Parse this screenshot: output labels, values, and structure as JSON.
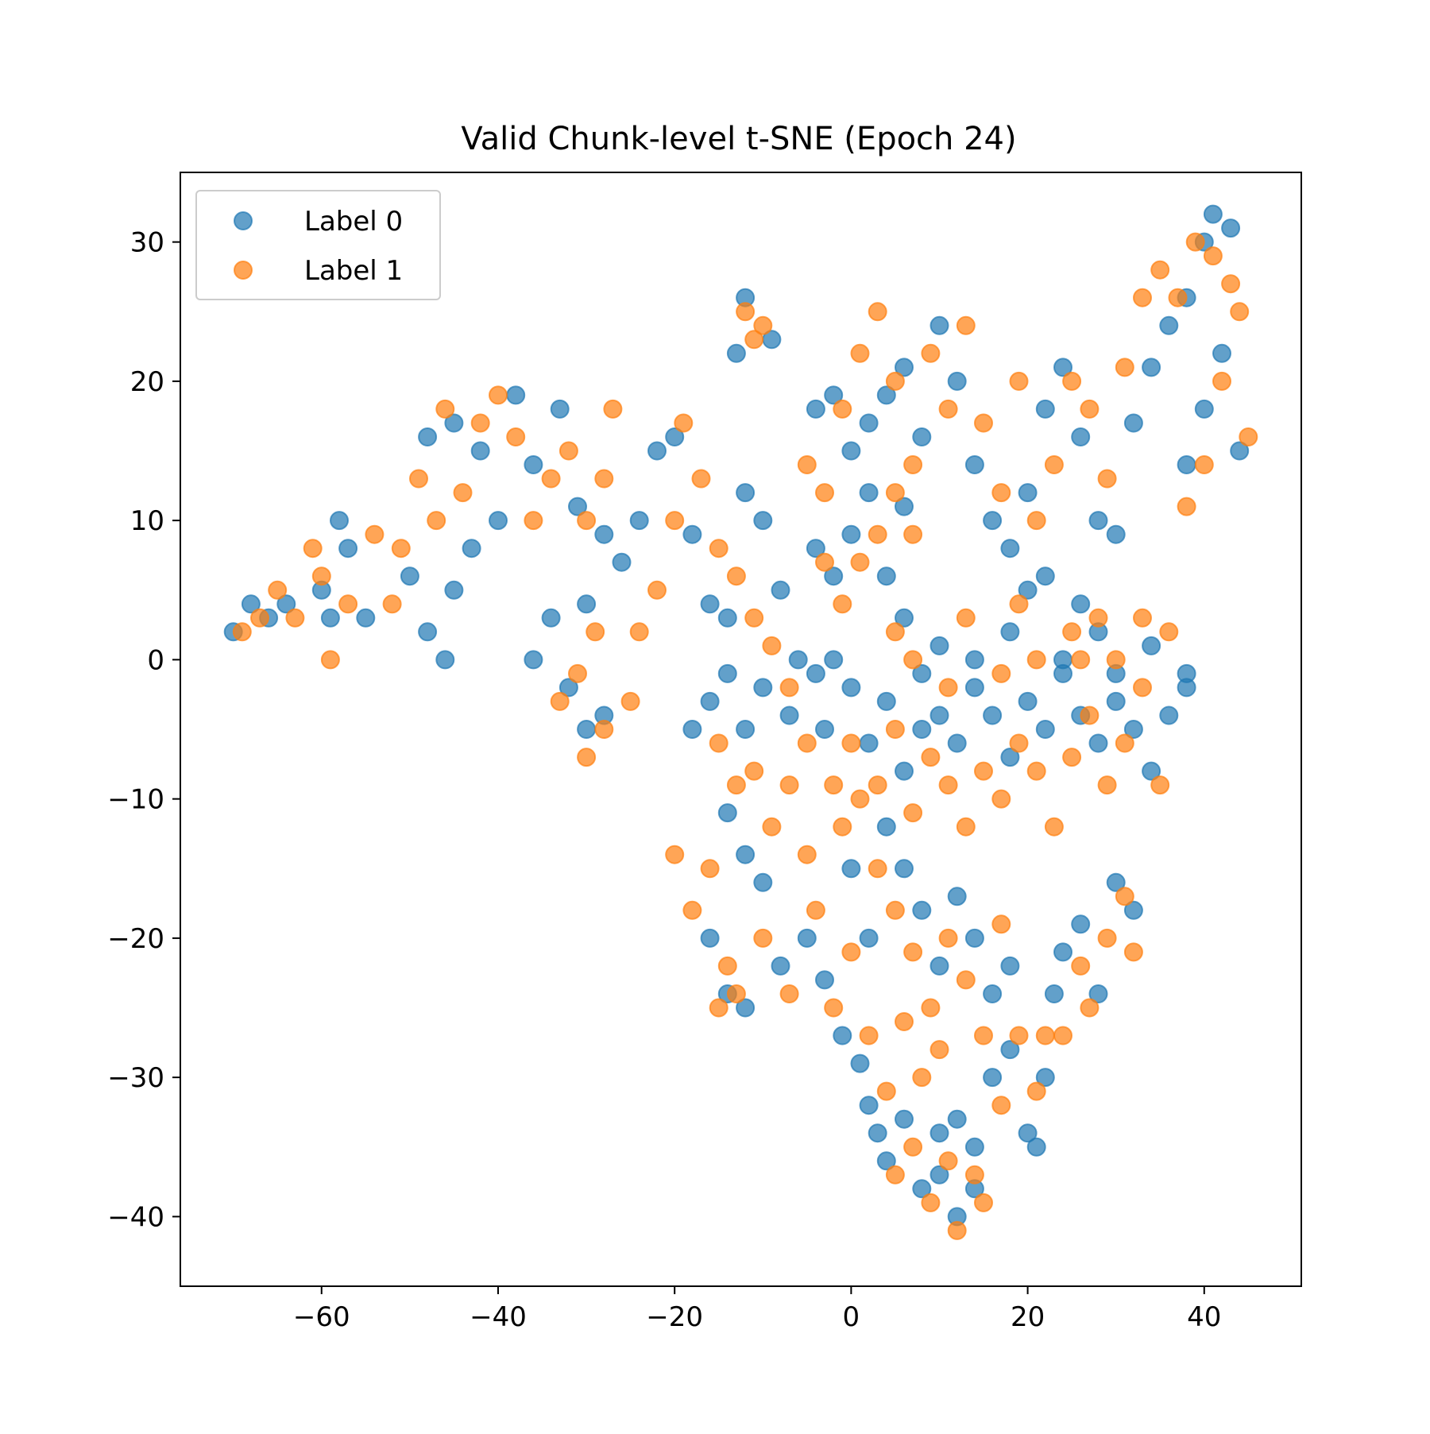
{
  "chart_data": {
    "type": "scatter",
    "title": "Valid Chunk-level t-SNE (Epoch 24)",
    "xlabel": "",
    "ylabel": "",
    "xlim": [
      -76,
      51
    ],
    "ylim": [
      -45,
      35
    ],
    "xticks": [
      -60,
      -40,
      -20,
      0,
      20,
      40
    ],
    "xtick_labels": [
      "−60",
      "−40",
      "−20",
      "0",
      "20",
      "40"
    ],
    "yticks": [
      30,
      20,
      10,
      0,
      -10,
      -20,
      -30,
      -40
    ],
    "ytick_labels": [
      "30",
      "20",
      "10",
      "0",
      "−10",
      "−20",
      "−30",
      "−40"
    ],
    "grid": false,
    "legend_position": "upper-left",
    "series": [
      {
        "name": "Label 0",
        "color": "#1f77b4",
        "alpha": 0.7,
        "points": [
          [
            -70,
            2
          ],
          [
            -68,
            4
          ],
          [
            -66,
            3
          ],
          [
            -64,
            4
          ],
          [
            -60,
            5
          ],
          [
            -58,
            10
          ],
          [
            -57,
            8
          ],
          [
            -59,
            3
          ],
          [
            -55,
            3
          ],
          [
            -50,
            6
          ],
          [
            -48,
            2
          ],
          [
            -46,
            0
          ],
          [
            -45,
            5
          ],
          [
            -43,
            8
          ],
          [
            -48,
            16
          ],
          [
            -45,
            17
          ],
          [
            -42,
            15
          ],
          [
            -40,
            10
          ],
          [
            -38,
            19
          ],
          [
            -36,
            14
          ],
          [
            -33,
            18
          ],
          [
            -31,
            11
          ],
          [
            -28,
            9
          ],
          [
            -30,
            4
          ],
          [
            -34,
            3
          ],
          [
            -36,
            0
          ],
          [
            -32,
            -2
          ],
          [
            -30,
            -5
          ],
          [
            -28,
            -4
          ],
          [
            -26,
            7
          ],
          [
            -24,
            10
          ],
          [
            -22,
            15
          ],
          [
            -20,
            16
          ],
          [
            -18,
            9
          ],
          [
            -16,
            4
          ],
          [
            -14,
            3
          ],
          [
            -12,
            12
          ],
          [
            -10,
            10
          ],
          [
            -8,
            5
          ],
          [
            -6,
            0
          ],
          [
            -4,
            -1
          ],
          [
            -2,
            0
          ],
          [
            -12,
            26
          ],
          [
            -13,
            22
          ],
          [
            -9,
            23
          ],
          [
            -4,
            18
          ],
          [
            -2,
            19
          ],
          [
            0,
            15
          ],
          [
            2,
            17
          ],
          [
            4,
            19
          ],
          [
            6,
            21
          ],
          [
            8,
            16
          ],
          [
            10,
            24
          ],
          [
            12,
            20
          ],
          [
            14,
            14
          ],
          [
            16,
            10
          ],
          [
            18,
            8
          ],
          [
            20,
            12
          ],
          [
            22,
            18
          ],
          [
            24,
            21
          ],
          [
            26,
            16
          ],
          [
            28,
            10
          ],
          [
            30,
            9
          ],
          [
            32,
            17
          ],
          [
            34,
            21
          ],
          [
            36,
            24
          ],
          [
            38,
            26
          ],
          [
            40,
            30
          ],
          [
            41,
            32
          ],
          [
            43,
            31
          ],
          [
            42,
            22
          ],
          [
            40,
            18
          ],
          [
            38,
            14
          ],
          [
            44,
            15
          ],
          [
            -14,
            -1
          ],
          [
            -16,
            -3
          ],
          [
            -18,
            -5
          ],
          [
            -12,
            -5
          ],
          [
            -10,
            -2
          ],
          [
            -7,
            -4
          ],
          [
            -3,
            -5
          ],
          [
            0,
            -2
          ],
          [
            2,
            -6
          ],
          [
            4,
            -3
          ],
          [
            6,
            -8
          ],
          [
            8,
            -5
          ],
          [
            10,
            -4
          ],
          [
            12,
            -6
          ],
          [
            14,
            -2
          ],
          [
            16,
            -4
          ],
          [
            18,
            -7
          ],
          [
            20,
            -3
          ],
          [
            22,
            -5
          ],
          [
            24,
            -1
          ],
          [
            26,
            -4
          ],
          [
            28,
            -6
          ],
          [
            30,
            -3
          ],
          [
            32,
            -5
          ],
          [
            34,
            -8
          ],
          [
            36,
            -4
          ],
          [
            38,
            -2
          ],
          [
            -14,
            -11
          ],
          [
            -12,
            -14
          ],
          [
            -10,
            -16
          ],
          [
            -16,
            -20
          ],
          [
            -14,
            -24
          ],
          [
            -12,
            -25
          ],
          [
            -8,
            -22
          ],
          [
            -5,
            -20
          ],
          [
            -3,
            -23
          ],
          [
            -1,
            -27
          ],
          [
            1,
            -29
          ],
          [
            2,
            -32
          ],
          [
            3,
            -34
          ],
          [
            4,
            -36
          ],
          [
            6,
            -33
          ],
          [
            8,
            -38
          ],
          [
            10,
            -37
          ],
          [
            12,
            -33
          ],
          [
            14,
            -35
          ],
          [
            16,
            -30
          ],
          [
            18,
            -28
          ],
          [
            20,
            -34
          ],
          [
            21,
            -35
          ],
          [
            22,
            -30
          ],
          [
            23,
            -24
          ],
          [
            24,
            -21
          ],
          [
            26,
            -19
          ],
          [
            28,
            -24
          ],
          [
            30,
            -16
          ],
          [
            32,
            -18
          ],
          [
            4,
            -12
          ],
          [
            6,
            -15
          ],
          [
            8,
            -18
          ],
          [
            10,
            -22
          ],
          [
            12,
            -17
          ],
          [
            14,
            -20
          ],
          [
            16,
            -24
          ],
          [
            18,
            -22
          ],
          [
            2,
            -20
          ],
          [
            0,
            -15
          ],
          [
            12,
            -40
          ],
          [
            14,
            -38
          ],
          [
            10,
            -34
          ],
          [
            26,
            4
          ],
          [
            28,
            2
          ],
          [
            30,
            -1
          ],
          [
            34,
            1
          ],
          [
            38,
            -1
          ],
          [
            6,
            3
          ],
          [
            8,
            -1
          ],
          [
            10,
            1
          ],
          [
            14,
            0
          ],
          [
            18,
            2
          ],
          [
            20,
            5
          ],
          [
            22,
            6
          ],
          [
            24,
            0
          ],
          [
            -4,
            8
          ],
          [
            -2,
            6
          ],
          [
            0,
            9
          ],
          [
            2,
            12
          ],
          [
            4,
            6
          ],
          [
            6,
            11
          ]
        ]
      },
      {
        "name": "Label 1",
        "color": "#ff7f0e",
        "alpha": 0.7,
        "points": [
          [
            -69,
            2
          ],
          [
            -67,
            3
          ],
          [
            -65,
            5
          ],
          [
            -63,
            3
          ],
          [
            -61,
            8
          ],
          [
            -60,
            6
          ],
          [
            -59,
            0
          ],
          [
            -57,
            4
          ],
          [
            -54,
            9
          ],
          [
            -52,
            4
          ],
          [
            -51,
            8
          ],
          [
            -49,
            13
          ],
          [
            -47,
            10
          ],
          [
            -46,
            18
          ],
          [
            -44,
            12
          ],
          [
            -42,
            17
          ],
          [
            -40,
            19
          ],
          [
            -38,
            16
          ],
          [
            -36,
            10
          ],
          [
            -34,
            13
          ],
          [
            -32,
            15
          ],
          [
            -30,
            10
          ],
          [
            -28,
            13
          ],
          [
            -27,
            18
          ],
          [
            -29,
            2
          ],
          [
            -31,
            -1
          ],
          [
            -33,
            -3
          ],
          [
            -30,
            -7
          ],
          [
            -28,
            -5
          ],
          [
            -25,
            -3
          ],
          [
            -24,
            2
          ],
          [
            -22,
            5
          ],
          [
            -20,
            10
          ],
          [
            -19,
            17
          ],
          [
            -17,
            13
          ],
          [
            -15,
            8
          ],
          [
            -13,
            6
          ],
          [
            -11,
            3
          ],
          [
            -9,
            1
          ],
          [
            -7,
            -2
          ],
          [
            -5,
            -6
          ],
          [
            -12,
            25
          ],
          [
            -11,
            23
          ],
          [
            -10,
            24
          ],
          [
            -5,
            14
          ],
          [
            -3,
            12
          ],
          [
            -1,
            18
          ],
          [
            1,
            22
          ],
          [
            3,
            25
          ],
          [
            5,
            20
          ],
          [
            7,
            14
          ],
          [
            9,
            22
          ],
          [
            11,
            18
          ],
          [
            13,
            24
          ],
          [
            15,
            17
          ],
          [
            17,
            12
          ],
          [
            19,
            20
          ],
          [
            21,
            10
          ],
          [
            23,
            14
          ],
          [
            25,
            20
          ],
          [
            27,
            18
          ],
          [
            29,
            13
          ],
          [
            31,
            21
          ],
          [
            33,
            26
          ],
          [
            35,
            28
          ],
          [
            37,
            26
          ],
          [
            39,
            30
          ],
          [
            41,
            29
          ],
          [
            43,
            27
          ],
          [
            44,
            25
          ],
          [
            42,
            20
          ],
          [
            40,
            14
          ],
          [
            38,
            11
          ],
          [
            45,
            16
          ],
          [
            -15,
            -6
          ],
          [
            -13,
            -9
          ],
          [
            -11,
            -8
          ],
          [
            -9,
            -12
          ],
          [
            -7,
            -9
          ],
          [
            -5,
            -14
          ],
          [
            -2,
            -9
          ],
          [
            0,
            -6
          ],
          [
            3,
            -9
          ],
          [
            5,
            -5
          ],
          [
            7,
            -11
          ],
          [
            9,
            -7
          ],
          [
            11,
            -9
          ],
          [
            13,
            -12
          ],
          [
            15,
            -8
          ],
          [
            17,
            -10
          ],
          [
            19,
            -6
          ],
          [
            21,
            -8
          ],
          [
            23,
            -12
          ],
          [
            25,
            -7
          ],
          [
            27,
            -4
          ],
          [
            29,
            -9
          ],
          [
            31,
            -6
          ],
          [
            33,
            -2
          ],
          [
            35,
            -9
          ],
          [
            -20,
            -14
          ],
          [
            -18,
            -18
          ],
          [
            -16,
            -15
          ],
          [
            -14,
            -22
          ],
          [
            -15,
            -25
          ],
          [
            -13,
            -24
          ],
          [
            -10,
            -20
          ],
          [
            -7,
            -24
          ],
          [
            -4,
            -18
          ],
          [
            -2,
            -25
          ],
          [
            0,
            -21
          ],
          [
            2,
            -27
          ],
          [
            4,
            -31
          ],
          [
            5,
            -37
          ],
          [
            7,
            -35
          ],
          [
            9,
            -39
          ],
          [
            11,
            -36
          ],
          [
            12,
            -41
          ],
          [
            14,
            -37
          ],
          [
            15,
            -39
          ],
          [
            17,
            -32
          ],
          [
            19,
            -27
          ],
          [
            21,
            -31
          ],
          [
            22,
            -27
          ],
          [
            24,
            -27
          ],
          [
            26,
            -22
          ],
          [
            27,
            -25
          ],
          [
            29,
            -20
          ],
          [
            31,
            -17
          ],
          [
            32,
            -21
          ],
          [
            3,
            -15
          ],
          [
            5,
            -18
          ],
          [
            7,
            -21
          ],
          [
            9,
            -25
          ],
          [
            11,
            -20
          ],
          [
            13,
            -23
          ],
          [
            15,
            -27
          ],
          [
            17,
            -19
          ],
          [
            1,
            -10
          ],
          [
            -1,
            -12
          ],
          [
            8,
            -30
          ],
          [
            10,
            -28
          ],
          [
            6,
            -26
          ],
          [
            26,
            0
          ],
          [
            28,
            3
          ],
          [
            30,
            0
          ],
          [
            33,
            3
          ],
          [
            36,
            2
          ],
          [
            5,
            2
          ],
          [
            7,
            0
          ],
          [
            11,
            -2
          ],
          [
            13,
            3
          ],
          [
            17,
            -1
          ],
          [
            19,
            4
          ],
          [
            21,
            0
          ],
          [
            25,
            2
          ],
          [
            -3,
            7
          ],
          [
            -1,
            4
          ],
          [
            1,
            7
          ],
          [
            3,
            9
          ],
          [
            5,
            12
          ],
          [
            7,
            9
          ]
        ]
      }
    ]
  }
}
